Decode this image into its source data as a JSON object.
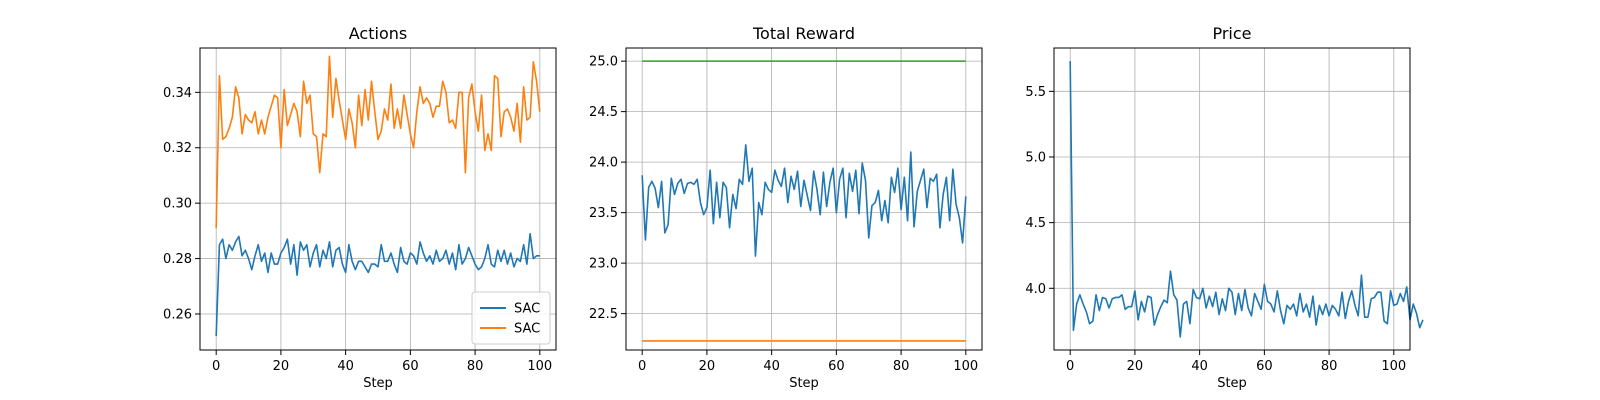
{
  "chart_data": [
    {
      "type": "line",
      "title": "Actions",
      "xlabel": "Step",
      "ylabel": "",
      "xlim": [
        -5,
        105
      ],
      "ylim": [
        0.247,
        0.356
      ],
      "xticks": [
        0,
        20,
        40,
        60,
        80,
        100
      ],
      "yticks": [
        0.26,
        0.28,
        0.3,
        0.32,
        0.34
      ],
      "ytick_labels": [
        "0.26",
        "0.28",
        "0.30",
        "0.32",
        "0.34"
      ],
      "grid": true,
      "legend": {
        "position": "lower-right",
        "entries": [
          "SAC",
          "SAC"
        ]
      },
      "series": [
        {
          "name": "SAC",
          "color": "#1f77b4",
          "values": [
            0.252,
            0.285,
            0.287,
            0.28,
            0.285,
            0.283,
            0.286,
            0.288,
            0.281,
            0.283,
            0.28,
            0.276,
            0.281,
            0.285,
            0.279,
            0.282,
            0.275,
            0.282,
            0.278,
            0.278,
            0.282,
            0.284,
            0.287,
            0.278,
            0.285,
            0.274,
            0.286,
            0.283,
            0.285,
            0.277,
            0.282,
            0.285,
            0.277,
            0.283,
            0.28,
            0.286,
            0.277,
            0.283,
            0.284,
            0.278,
            0.275,
            0.285,
            0.279,
            0.276,
            0.279,
            0.279,
            0.277,
            0.275,
            0.278,
            0.278,
            0.277,
            0.285,
            0.279,
            0.279,
            0.282,
            0.278,
            0.275,
            0.284,
            0.279,
            0.278,
            0.282,
            0.281,
            0.278,
            0.286,
            0.282,
            0.279,
            0.281,
            0.278,
            0.283,
            0.279,
            0.28,
            0.283,
            0.278,
            0.282,
            0.276,
            0.285,
            0.278,
            0.28,
            0.284,
            0.281,
            0.278,
            0.276,
            0.277,
            0.28,
            0.285,
            0.278,
            0.277,
            0.283,
            0.279,
            0.283,
            0.278,
            0.282,
            0.277,
            0.28,
            0.279,
            0.285,
            0.278,
            0.289,
            0.28,
            0.281,
            0.281
          ]
        },
        {
          "name": "SAC",
          "color": "#ff7f0e",
          "values": [
            0.291,
            0.346,
            0.323,
            0.324,
            0.327,
            0.331,
            0.342,
            0.338,
            0.325,
            0.332,
            0.33,
            0.329,
            0.333,
            0.325,
            0.33,
            0.325,
            0.331,
            0.335,
            0.339,
            0.338,
            0.32,
            0.341,
            0.328,
            0.332,
            0.336,
            0.333,
            0.324,
            0.344,
            0.336,
            0.339,
            0.325,
            0.324,
            0.311,
            0.325,
            0.324,
            0.353,
            0.331,
            0.345,
            0.337,
            0.33,
            0.323,
            0.334,
            0.329,
            0.32,
            0.339,
            0.328,
            0.341,
            0.33,
            0.344,
            0.333,
            0.323,
            0.326,
            0.334,
            0.33,
            0.343,
            0.327,
            0.334,
            0.327,
            0.339,
            0.332,
            0.325,
            0.32,
            0.333,
            0.342,
            0.336,
            0.338,
            0.336,
            0.331,
            0.335,
            0.335,
            0.344,
            0.34,
            0.329,
            0.33,
            0.327,
            0.34,
            0.34,
            0.311,
            0.338,
            0.343,
            0.333,
            0.326,
            0.339,
            0.319,
            0.325,
            0.319,
            0.346,
            0.345,
            0.324,
            0.333,
            0.334,
            0.331,
            0.326,
            0.336,
            0.322,
            0.342,
            0.33,
            0.331,
            0.351,
            0.344,
            0.333
          ]
        }
      ]
    },
    {
      "type": "line",
      "title": "Total Reward",
      "xlabel": "Step",
      "ylabel": "",
      "xlim": [
        -5,
        105
      ],
      "ylim": [
        22.14,
        25.13
      ],
      "xticks": [
        0,
        20,
        40,
        60,
        80,
        100
      ],
      "yticks": [
        22.5,
        23.0,
        23.5,
        24.0,
        24.5,
        25.0
      ],
      "ytick_labels": [
        "22.5",
        "23.0",
        "23.5",
        "24.0",
        "24.5",
        "25.0"
      ],
      "grid": true,
      "series": [
        {
          "color": "#2ca02c",
          "values": [
            25.0,
            25.0
          ],
          "x": [
            0,
            100
          ]
        },
        {
          "color": "#ff7f0e",
          "values": [
            22.23,
            22.23
          ],
          "x": [
            0,
            100
          ]
        },
        {
          "color": "#1f77b4",
          "values": [
            23.87,
            23.23,
            23.75,
            23.81,
            23.74,
            23.55,
            23.81,
            23.3,
            23.38,
            23.84,
            23.68,
            23.79,
            23.83,
            23.69,
            23.79,
            23.8,
            23.78,
            23.83,
            23.6,
            23.48,
            23.55,
            23.92,
            23.39,
            23.8,
            23.45,
            23.8,
            23.75,
            23.35,
            23.68,
            23.54,
            23.83,
            23.78,
            24.17,
            23.81,
            23.94,
            23.07,
            23.6,
            23.48,
            23.8,
            23.73,
            23.7,
            23.92,
            23.82,
            23.76,
            23.94,
            23.6,
            23.86,
            23.73,
            23.91,
            23.56,
            23.82,
            23.67,
            23.52,
            23.91,
            23.73,
            23.48,
            23.9,
            23.56,
            23.8,
            23.94,
            23.5,
            23.83,
            23.94,
            23.45,
            23.89,
            23.71,
            23.92,
            23.49,
            23.99,
            23.82,
            23.25,
            23.57,
            23.6,
            23.72,
            23.42,
            23.62,
            23.4,
            23.85,
            23.7,
            23.94,
            23.53,
            23.85,
            23.42,
            24.1,
            23.36,
            23.71,
            23.82,
            23.93,
            23.55,
            23.84,
            23.81,
            23.88,
            23.35,
            23.68,
            23.85,
            23.42,
            23.93,
            23.58,
            23.45,
            23.2,
            23.66
          ]
        }
      ]
    },
    {
      "type": "line",
      "title": "Price",
      "xlabel": "Step",
      "ylabel": "",
      "xlim": [
        -5,
        105
      ],
      "ylim": [
        3.53,
        5.83
      ],
      "xticks": [
        0,
        20,
        40,
        60,
        80,
        100
      ],
      "yticks": [
        4.0,
        4.5,
        5.0,
        5.5
      ],
      "ytick_labels": [
        "4.0",
        "4.5",
        "5.0",
        "5.5"
      ],
      "grid": true,
      "series": [
        {
          "color": "#1f77b4",
          "values": [
            5.73,
            3.68,
            3.88,
            3.95,
            3.88,
            3.82,
            3.73,
            3.75,
            3.95,
            3.83,
            3.93,
            3.92,
            3.85,
            3.92,
            3.93,
            3.93,
            3.95,
            3.84,
            3.86,
            3.86,
            3.98,
            3.76,
            3.9,
            3.82,
            3.94,
            3.93,
            3.72,
            3.8,
            3.86,
            3.91,
            3.89,
            4.13,
            3.95,
            3.91,
            3.63,
            3.88,
            3.9,
            3.73,
            3.99,
            3.93,
            3.92,
            4.0,
            3.85,
            3.94,
            3.86,
            3.97,
            3.8,
            3.92,
            3.83,
            4.0,
            3.97,
            3.8,
            3.96,
            3.83,
            3.99,
            3.85,
            3.79,
            3.96,
            3.9,
            3.84,
            4.03,
            3.9,
            3.88,
            3.82,
            3.98,
            3.83,
            3.73,
            3.87,
            3.84,
            3.88,
            3.79,
            3.96,
            3.82,
            3.88,
            3.78,
            3.94,
            3.72,
            3.87,
            3.8,
            3.88,
            3.79,
            3.87,
            3.84,
            3.79,
            3.97,
            3.77,
            3.9,
            3.98,
            3.87,
            3.79,
            4.1,
            3.78,
            3.78,
            3.92,
            3.93,
            3.97,
            3.97,
            3.75,
            3.73,
            3.98,
            3.87,
            3.88,
            3.96,
            3.9,
            4.01,
            3.76,
            3.88,
            3.81,
            3.7,
            3.76
          ]
        }
      ]
    }
  ]
}
